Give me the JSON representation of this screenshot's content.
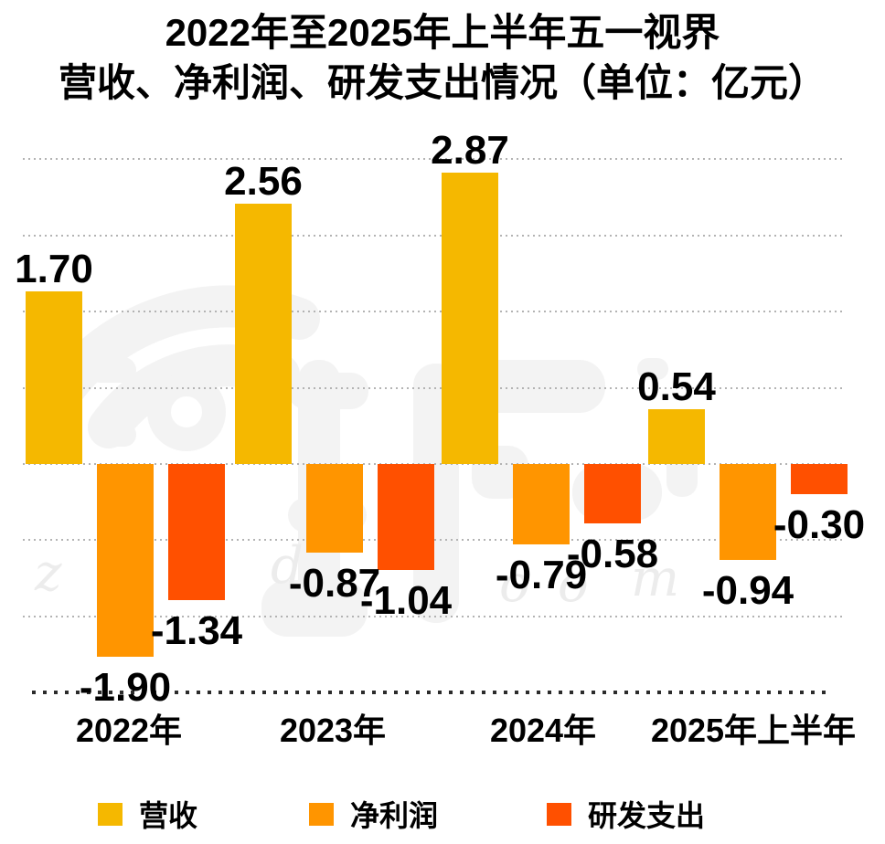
{
  "title": {
    "line1": "2022年至2025年上半年五一视界",
    "line2": "营收、净利润、研发支出情况（单位：亿元）"
  },
  "chart_data": {
    "type": "bar",
    "title": "2022年至2025年上半年五一视界营收、净利润、研发支出情况",
    "unit": "亿元",
    "categories": [
      "2022年",
      "2023年",
      "2024年",
      "2025年上半年"
    ],
    "series": [
      {
        "name": "营收",
        "color": "#F5B800",
        "values": [
          1.7,
          2.56,
          2.87,
          0.54
        ]
      },
      {
        "name": "净利润",
        "color": "#FF9500",
        "values": [
          -1.9,
          -0.87,
          -0.79,
          -0.94
        ]
      },
      {
        "name": "研发支出",
        "color": "#FF5000",
        "values": [
          -1.34,
          -1.04,
          -0.58,
          -0.3
        ]
      }
    ],
    "ylim": [
      -2.25,
      3.0
    ],
    "gridline_step": 0.75,
    "grid": "dotted horizontal",
    "legend_position": "bottom",
    "value_label_format": "0.00"
  },
  "legend": {
    "items": [
      {
        "label": "营收",
        "color": "#F5B800"
      },
      {
        "label": "净利润",
        "color": "#FF9500"
      },
      {
        "label": "研发支出",
        "color": "#FF5000"
      }
    ]
  },
  "watermark": {
    "letters": [
      "z",
      "d",
      "o",
      "o",
      "m"
    ]
  },
  "colors": {
    "background": "#FFFFFF",
    "text": "#000000",
    "gridline": "#B3B3B3",
    "baseline": "#2B2B2B",
    "watermark": "#F3F3F3"
  }
}
